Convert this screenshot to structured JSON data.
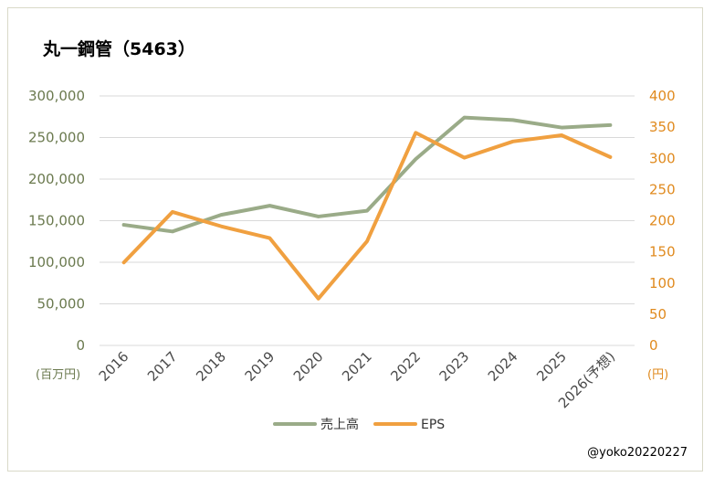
{
  "chart_data": {
    "type": "line",
    "title": "丸一鋼管（5463）",
    "categories": [
      "2016",
      "2017",
      "2018",
      "2019",
      "2020",
      "2021",
      "2022",
      "2023",
      "2024",
      "2025",
      "2026(予想)"
    ],
    "series": [
      {
        "name": "売上高",
        "axis": "left",
        "color": "#9aab88",
        "values": [
          145000,
          137000,
          157000,
          168000,
          155000,
          162000,
          224000,
          274000,
          271000,
          262000,
          265000
        ]
      },
      {
        "name": "EPS",
        "axis": "right",
        "color": "#f0a040",
        "values": [
          133,
          214,
          191,
          172,
          75,
          167,
          341,
          301,
          327,
          337,
          302
        ]
      }
    ],
    "y_left": {
      "unit": "(百万円)",
      "min": 0,
      "max": 300000,
      "ticks": [
        0,
        50000,
        100000,
        150000,
        200000,
        250000,
        300000
      ],
      "tick_labels": [
        "0",
        "50,000",
        "100,000",
        "150,000",
        "200,000",
        "250,000",
        "300,000"
      ],
      "color": "#6b7a4f"
    },
    "y_right": {
      "unit": "(円)",
      "min": 0,
      "max": 400,
      "ticks": [
        0,
        50,
        100,
        150,
        200,
        250,
        300,
        350,
        400
      ],
      "tick_labels": [
        "0",
        "50",
        "100",
        "150",
        "200",
        "250",
        "300",
        "350",
        "400"
      ],
      "color": "#e08a1e"
    },
    "grid": true,
    "legend": "bottom"
  },
  "credit": "@yoko20220227"
}
